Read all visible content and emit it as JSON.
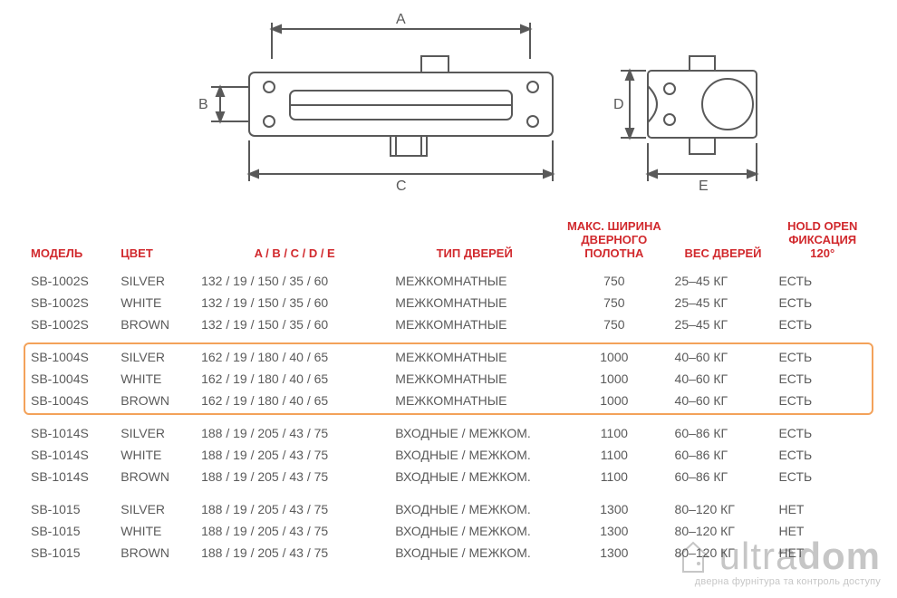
{
  "diagram": {
    "labels": {
      "A": "A",
      "B": "B",
      "C": "C",
      "D": "D",
      "E": "E"
    },
    "stroke": "#595959",
    "stroke_width": 2
  },
  "headers": {
    "model": "МОДЕЛЬ",
    "color": "ЦВЕТ",
    "dims": "A / B / C / D / E",
    "door_type": "ТИП ДВЕРЕЙ",
    "max_width": "МАКС. ШИРИНА ДВЕРНОГО ПОЛОТНА",
    "door_weight": "ВЕС ДВЕРЕЙ",
    "hold_open": "HOLD OPEN ФИКСАЦИЯ 120°"
  },
  "groups": [
    {
      "highlight": false,
      "rows": [
        {
          "model": "SB-1002S",
          "color": "SILVER",
          "dims": "132 / 19 / 150 / 35 / 60",
          "type": "МЕЖКОМНАТНЫЕ",
          "width": "750",
          "weight": "25–45 КГ",
          "hold": "ЕСТЬ"
        },
        {
          "model": "SB-1002S",
          "color": "WHITE",
          "dims": "132 / 19 / 150 / 35 / 60",
          "type": "МЕЖКОМНАТНЫЕ",
          "width": "750",
          "weight": "25–45 КГ",
          "hold": "ЕСТЬ"
        },
        {
          "model": "SB-1002S",
          "color": "BROWN",
          "dims": "132 / 19 / 150 / 35 / 60",
          "type": "МЕЖКОМНАТНЫЕ",
          "width": "750",
          "weight": "25–45 КГ",
          "hold": "ЕСТЬ"
        }
      ]
    },
    {
      "highlight": true,
      "rows": [
        {
          "model": "SB-1004S",
          "color": "SILVER",
          "dims": "162 / 19 / 180 / 40 / 65",
          "type": "МЕЖКОМНАТНЫЕ",
          "width": "1000",
          "weight": "40–60 КГ",
          "hold": "ЕСТЬ"
        },
        {
          "model": "SB-1004S",
          "color": "WHITE",
          "dims": "162 / 19 / 180 / 40 / 65",
          "type": "МЕЖКОМНАТНЫЕ",
          "width": "1000",
          "weight": "40–60 КГ",
          "hold": "ЕСТЬ"
        },
        {
          "model": "SB-1004S",
          "color": "BROWN",
          "dims": "162 / 19 / 180 / 40 / 65",
          "type": "МЕЖКОМНАТНЫЕ",
          "width": "1000",
          "weight": "40–60 КГ",
          "hold": "ЕСТЬ"
        }
      ]
    },
    {
      "highlight": false,
      "rows": [
        {
          "model": "SB-1014S",
          "color": "SILVER",
          "dims": "188 / 19 / 205 / 43 / 75",
          "type": "ВХОДНЫЕ / МЕЖКОМ.",
          "width": "1100",
          "weight": "60–86 КГ",
          "hold": "ЕСТЬ"
        },
        {
          "model": "SB-1014S",
          "color": "WHITE",
          "dims": "188 / 19 / 205 / 43 / 75",
          "type": "ВХОДНЫЕ / МЕЖКОМ.",
          "width": "1100",
          "weight": "60–86 КГ",
          "hold": "ЕСТЬ"
        },
        {
          "model": "SB-1014S",
          "color": "BROWN",
          "dims": "188 / 19 / 205 / 43 / 75",
          "type": "ВХОДНЫЕ / МЕЖКОМ.",
          "width": "1100",
          "weight": "60–86 КГ",
          "hold": "ЕСТЬ"
        }
      ]
    },
    {
      "highlight": false,
      "rows": [
        {
          "model": "SB-1015",
          "color": "SILVER",
          "dims": "188 / 19 / 205 / 43 / 75",
          "type": "ВХОДНЫЕ / МЕЖКОМ.",
          "width": "1300",
          "weight": "80–120 КГ",
          "hold": "НЕТ"
        },
        {
          "model": "SB-1015",
          "color": "WHITE",
          "dims": "188 / 19 / 205 / 43 / 75",
          "type": "ВХОДНЫЕ / МЕЖКОМ.",
          "width": "1300",
          "weight": "80–120 КГ",
          "hold": "НЕТ"
        },
        {
          "model": "SB-1015",
          "color": "BROWN",
          "dims": "188 / 19 / 205 / 43 / 75",
          "type": "ВХОДНЫЕ / МЕЖКОМ.",
          "width": "1300",
          "weight": "80–120 КГ",
          "hold": "НЕТ"
        }
      ]
    }
  ],
  "watermark": {
    "brand_ultra": "ultra",
    "brand_dom": "dom",
    "sub": "дверна фурнітура та контроль доступу"
  },
  "colors": {
    "header": "#d1292d",
    "text": "#5a5a5a",
    "highlight_border": "#f3a25a",
    "diagram_stroke": "#595959"
  }
}
